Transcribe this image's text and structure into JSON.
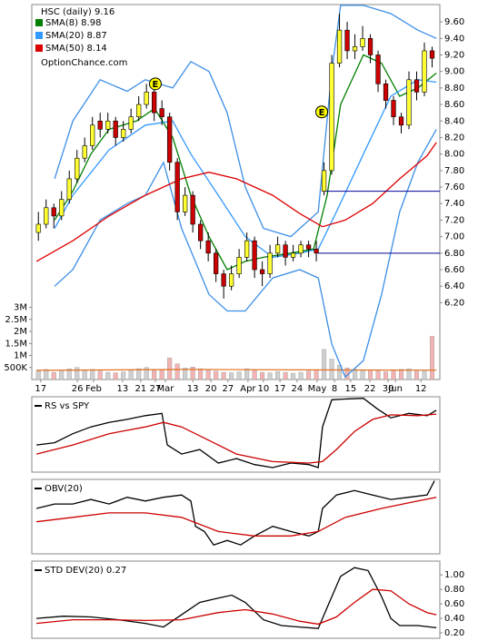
{
  "chart_data": [
    {
      "type": "candlestick",
      "title": "HSC (daily)",
      "last": 9.16,
      "source": "OptionChance.com",
      "xlim": [
        0,
        105
      ],
      "xticks": [
        {
          "value": 1.6,
          "label": "17"
        },
        {
          "value": 11.1,
          "label": "26"
        },
        {
          "value": 15.3,
          "label": "Feb"
        },
        {
          "value": 22.8,
          "label": "13"
        },
        {
          "value": 27.5,
          "label": "21"
        },
        {
          "value": 31.3,
          "label": "27"
        },
        {
          "value": 33.9,
          "label": "Mar"
        },
        {
          "value": 41.0,
          "label": "13"
        },
        {
          "value": 45.7,
          "label": "20"
        },
        {
          "value": 50.1,
          "label": "27"
        },
        {
          "value": 55.3,
          "label": "Apr"
        },
        {
          "value": 59.3,
          "label": "10"
        },
        {
          "value": 63.6,
          "label": "17"
        },
        {
          "value": 68.0,
          "label": "24"
        },
        {
          "value": 73.2,
          "label": "May"
        },
        {
          "value": 77.7,
          "label": "8"
        },
        {
          "value": 81.9,
          "label": "15"
        },
        {
          "value": 86.9,
          "label": "22"
        },
        {
          "value": 91.6,
          "label": "30"
        },
        {
          "value": 93.5,
          "label": "Jun"
        },
        {
          "value": 100.1,
          "label": "12"
        }
      ],
      "ylim": [
        5.27,
        9.81
      ],
      "yticks": [
        {
          "value": 6.2,
          "label": "6.20"
        },
        {
          "value": 6.4,
          "label": "6.40"
        },
        {
          "value": 6.6,
          "label": "6.60"
        },
        {
          "value": 6.8,
          "label": "6.80"
        },
        {
          "value": 7.0,
          "label": "7.00"
        },
        {
          "value": 7.2,
          "label": "7.20"
        },
        {
          "value": 7.4,
          "label": "7.40"
        },
        {
          "value": 7.6,
          "label": "7.60"
        },
        {
          "value": 7.8,
          "label": "7.80"
        },
        {
          "value": 8.0,
          "label": "8.00"
        },
        {
          "value": 8.2,
          "label": "8.20"
        },
        {
          "value": 8.4,
          "label": "8.40"
        },
        {
          "value": 8.6,
          "label": "8.60"
        },
        {
          "value": 8.8,
          "label": "8.80"
        },
        {
          "value": 9.0,
          "label": "9.00"
        },
        {
          "value": 9.2,
          "label": "9.20"
        },
        {
          "value": 9.4,
          "label": "9.40"
        },
        {
          "value": 9.6,
          "label": "9.60"
        }
      ],
      "up_color": "#ffff33",
      "down_color": "#cc0000",
      "x": [
        1,
        3,
        5,
        7,
        9,
        11,
        13,
        15,
        17,
        19,
        21,
        23,
        25,
        27,
        29,
        31,
        33,
        35,
        37,
        39,
        41,
        43,
        45,
        47,
        49,
        51,
        53,
        55,
        57,
        59,
        61,
        63,
        65,
        67,
        69,
        71,
        73,
        75,
        77,
        79,
        81,
        83,
        85,
        87,
        89,
        91,
        93,
        95,
        97,
        99,
        101,
        103
      ],
      "open": [
        7.05,
        7.15,
        7.35,
        7.25,
        7.45,
        7.7,
        7.95,
        8.1,
        8.4,
        8.3,
        8.4,
        8.2,
        8.3,
        8.45,
        8.6,
        8.75,
        8.55,
        8.45,
        7.9,
        7.3,
        7.5,
        7.15,
        6.95,
        6.8,
        6.55,
        6.4,
        6.55,
        6.75,
        6.95,
        6.6,
        6.55,
        6.8,
        6.9,
        6.75,
        6.8,
        6.9,
        6.85,
        7.55,
        7.8,
        9.1,
        9.5,
        9.25,
        9.3,
        9.4,
        9.2,
        8.85,
        8.65,
        8.45,
        8.35,
        8.9,
        8.75,
        9.25
      ],
      "high": [
        7.3,
        7.45,
        7.4,
        7.55,
        7.8,
        8.05,
        8.2,
        8.45,
        8.5,
        8.5,
        8.45,
        8.4,
        8.55,
        8.7,
        8.85,
        8.8,
        8.65,
        8.5,
        7.95,
        7.6,
        7.55,
        7.2,
        7.05,
        6.85,
        6.6,
        6.65,
        6.85,
        7.05,
        7.0,
        6.7,
        6.9,
        7.0,
        6.95,
        6.9,
        6.95,
        6.95,
        6.95,
        7.9,
        9.2,
        9.7,
        9.6,
        9.45,
        9.55,
        9.45,
        9.25,
        8.9,
        8.7,
        8.5,
        9.0,
        9.0,
        9.35,
        9.3
      ],
      "low": [
        6.95,
        7.1,
        7.1,
        7.2,
        7.4,
        7.65,
        7.9,
        8.05,
        8.2,
        8.25,
        8.1,
        8.15,
        8.25,
        8.4,
        8.55,
        8.4,
        8.35,
        7.8,
        7.2,
        7.25,
        7.05,
        6.85,
        6.7,
        6.45,
        6.25,
        6.35,
        6.5,
        6.7,
        6.5,
        6.4,
        6.5,
        6.75,
        6.65,
        6.7,
        6.75,
        6.75,
        6.7,
        7.5,
        7.75,
        9.05,
        9.15,
        9.15,
        9.25,
        9.1,
        8.75,
        8.55,
        8.35,
        8.25,
        8.3,
        8.65,
        8.7,
        9.05
      ],
      "close": [
        7.15,
        7.35,
        7.25,
        7.45,
        7.7,
        7.95,
        8.1,
        8.35,
        8.3,
        8.4,
        8.2,
        8.3,
        8.45,
        8.6,
        8.75,
        8.5,
        8.45,
        7.9,
        7.3,
        7.5,
        7.15,
        6.95,
        6.8,
        6.55,
        6.4,
        6.55,
        6.75,
        6.95,
        6.6,
        6.55,
        6.8,
        6.9,
        6.75,
        6.8,
        6.9,
        6.85,
        6.8,
        7.8,
        9.1,
        9.5,
        9.25,
        9.3,
        9.4,
        9.2,
        8.85,
        8.65,
        8.45,
        8.35,
        8.9,
        8.75,
        9.25,
        9.16
      ],
      "series": [
        {
          "name": "SMA(8)",
          "last": 8.98,
          "color": "#008000",
          "x": [
            5.2,
            9.9,
            14.6,
            19.3,
            26.4,
            31.1,
            35.8,
            40.5,
            45.2,
            49.9,
            54.6,
            59.3,
            66.4,
            72.3,
            75.8,
            79.3,
            85.2,
            89.9,
            94.6,
            99.3,
            104.1
          ],
          "values": [
            7.2,
            7.55,
            8.0,
            8.3,
            8.4,
            8.55,
            8.2,
            7.5,
            7.0,
            6.6,
            6.7,
            6.75,
            6.8,
            6.85,
            7.5,
            8.6,
            9.2,
            9.1,
            8.7,
            8.8,
            8.98
          ]
        },
        {
          "name": "SMA(20)",
          "last": 8.87,
          "color": "#3399ff",
          "x": [
            5.2,
            9.9,
            19.3,
            28.7,
            35.8,
            40.5,
            47.6,
            54.6,
            61.7,
            68.7,
            73.5,
            78.2,
            85.2,
            92.3,
            99.3,
            104.1
          ],
          "values": [
            7.1,
            7.5,
            8.05,
            8.35,
            8.4,
            8.0,
            7.5,
            7.0,
            6.75,
            6.8,
            6.85,
            7.3,
            8.0,
            8.7,
            8.9,
            8.87
          ]
        },
        {
          "name": "SMA(50)",
          "last": 8.14,
          "color": "#dd0000",
          "x": [
            0.5,
            9.9,
            19.3,
            28.7,
            38.1,
            45.2,
            52.3,
            61.7,
            68.7,
            74.6,
            80.5,
            87.6,
            94.6,
            101.7,
            104.1
          ],
          "values": [
            6.7,
            6.95,
            7.25,
            7.5,
            7.7,
            7.78,
            7.7,
            7.5,
            7.28,
            7.12,
            7.2,
            7.4,
            7.7,
            7.98,
            8.14
          ]
        }
      ],
      "bands": [
        {
          "color": "#3b8ee6",
          "x": [
            5.2,
            9.9,
            17.0,
            24.0,
            28.7,
            35.8,
            40.5,
            45.2,
            49.9,
            54.6,
            59.3,
            66.4,
            73.5,
            77.0,
            79.3,
            85.2,
            92.3,
            99.3,
            104.1
          ],
          "values": [
            7.7,
            8.4,
            8.9,
            8.76,
            8.9,
            8.8,
            9.12,
            9.0,
            8.5,
            7.6,
            7.1,
            7.0,
            7.3,
            9.0,
            9.8,
            9.8,
            9.7,
            9.5,
            9.4
          ]
        },
        {
          "color": "#3b8ee6",
          "x": [
            5.2,
            9.9,
            17.0,
            24.0,
            28.7,
            33.4,
            38.1,
            45.2,
            49.9,
            54.6,
            61.7,
            68.7,
            73.5,
            77.0,
            80.5,
            85.2,
            89.9,
            94.6,
            99.3,
            104.1
          ],
          "values": [
            6.4,
            6.6,
            7.2,
            7.4,
            7.5,
            7.9,
            7.1,
            6.3,
            6.1,
            6.1,
            6.5,
            6.6,
            6.5,
            5.7,
            5.3,
            5.5,
            6.3,
            7.3,
            7.9,
            8.3
          ]
        }
      ],
      "levels": [
        {
          "value": 7.55,
          "from": 74.6,
          "color": "#000099"
        },
        {
          "value": 6.8,
          "from": 73.5,
          "color": "#000099"
        }
      ],
      "events": [
        {
          "label": "E",
          "x": 31.3,
          "y": 8.85,
          "color": "#ffff00"
        },
        {
          "label": "E",
          "x": 74.4,
          "y": 8.51,
          "color": "#ffff00"
        }
      ],
      "volume": [
        350000,
        420000,
        300000,
        380000,
        450000,
        500000,
        380000,
        420000,
        350000,
        300000,
        280000,
        320000,
        400000,
        450000,
        500000,
        380000,
        420000,
        900000,
        650000,
        480000,
        520000,
        450000,
        380000,
        350000,
        300000,
        280000,
        320000,
        450000,
        380000,
        300000,
        280000,
        330000,
        300000,
        260000,
        300000,
        350000,
        400000,
        1250000,
        850000,
        600000,
        480000,
        420000,
        380000,
        400000,
        350000,
        320000,
        380000,
        420000,
        450000,
        350000,
        380000,
        1800000
      ],
      "volume_up_color": "#cfcfcf",
      "volume_down_color": "#f2b3b3",
      "vol_ylim": [
        0,
        15600000
      ],
      "vol_yticks": [
        {
          "value": 500000,
          "label": "500K"
        },
        {
          "value": 1000000,
          "label": "1M"
        },
        {
          "value": 1500000,
          "label": "1.5M"
        },
        {
          "value": 2000000,
          "label": "2M"
        },
        {
          "value": 2500000,
          "label": "2.5M"
        },
        {
          "value": 3000000,
          "label": "3M"
        }
      ],
      "volume_avg": {
        "color": "#e07020",
        "x": [
          0.5,
          40,
          70,
          104.1
        ],
        "values": [
          380000,
          420000,
          400000,
          390000
        ]
      }
    },
    {
      "type": "line",
      "title": "RS vs SPY",
      "xlim": [
        0,
        105
      ],
      "ylim": [
        0,
        100
      ],
      "series": [
        {
          "color": "#000000",
          "x": [
            0.5,
            5.2,
            9.9,
            14.6,
            19.3,
            24.0,
            28.7,
            33.0,
            34.4,
            38.1,
            42.8,
            47.6,
            52.3,
            57.0,
            61.7,
            66.4,
            71.1,
            73.5,
            74.6,
            77.0,
            80.5,
            85.2,
            88.8,
            92.3,
            97.0,
            101.7,
            104.1
          ],
          "values": [
            36,
            39,
            51,
            60,
            66,
            70,
            75,
            78,
            36,
            24,
            30,
            12,
            18,
            10,
            6,
            12,
            10,
            6,
            60,
            96,
            97,
            98,
            84,
            72,
            78,
            75,
            82
          ]
        },
        {
          "color": "#cc0000",
          "x": [
            0.5,
            9.9,
            19.3,
            28.7,
            33.4,
            38.1,
            45.2,
            52.3,
            61.7,
            71.1,
            74.6,
            78.2,
            82.9,
            87.6,
            92.3,
            99.3,
            104.1
          ],
          "values": [
            24,
            36,
            51,
            60,
            66,
            60,
            42,
            24,
            14,
            12,
            14,
            30,
            54,
            70,
            76,
            75,
            77
          ]
        }
      ]
    },
    {
      "type": "line",
      "title": "OBV(20)",
      "xlim": [
        0,
        105
      ],
      "ylim": [
        0,
        100
      ],
      "series": [
        {
          "color": "#000000",
          "x": [
            0.5,
            5.2,
            9.9,
            14.6,
            19.3,
            24.0,
            28.7,
            33.4,
            38.1,
            40.5,
            41.7,
            44.0,
            46.4,
            49.9,
            53.4,
            57.0,
            61.7,
            66.4,
            71.1,
            73.5,
            74.6,
            78.2,
            82.9,
            87.6,
            92.3,
            97.0,
            101.7,
            103.6
          ],
          "values": [
            61,
            67,
            67,
            73,
            67,
            76,
            71,
            76,
            79,
            71,
            37,
            30,
            12,
            18,
            12,
            24,
            37,
            30,
            24,
            30,
            61,
            79,
            85,
            79,
            73,
            76,
            79,
            98
          ]
        },
        {
          "color": "#cc0000",
          "x": [
            0.5,
            9.9,
            19.3,
            28.7,
            38.1,
            47.6,
            57.0,
            66.4,
            73.5,
            80.5,
            89.9,
            99.3,
            104.1
          ],
          "values": [
            43,
            49,
            55,
            55,
            49,
            30,
            24,
            24,
            30,
            49,
            61,
            71,
            76
          ]
        }
      ]
    },
    {
      "type": "line",
      "title": "STD DEV(20)",
      "last": 0.27,
      "xlim": [
        0,
        105
      ],
      "ylim": [
        0.125,
        1.19
      ],
      "yticks": [
        {
          "value": 0.2,
          "label": "0.20"
        },
        {
          "value": 0.4,
          "label": "0.40"
        },
        {
          "value": 0.6,
          "label": "0.60"
        },
        {
          "value": 0.8,
          "label": "0.80"
        },
        {
          "value": 1.0,
          "label": "1.00"
        }
      ],
      "series": [
        {
          "color": "#000000",
          "x": [
            0.5,
            7.5,
            14.6,
            21.7,
            28.7,
            33.4,
            38.1,
            42.8,
            47.6,
            51.1,
            54.6,
            59.3,
            64.0,
            68.7,
            73.5,
            75.8,
            79.3,
            82.9,
            86.4,
            89.9,
            92.3,
            94.6,
            99.3,
            104.1
          ],
          "values": [
            0.4,
            0.43,
            0.42,
            0.38,
            0.33,
            0.28,
            0.45,
            0.62,
            0.68,
            0.72,
            0.62,
            0.38,
            0.3,
            0.28,
            0.26,
            0.55,
            0.98,
            1.1,
            1.06,
            0.7,
            0.4,
            0.3,
            0.3,
            0.27
          ]
        },
        {
          "color": "#cc0000",
          "x": [
            0.5,
            9.9,
            19.3,
            28.7,
            38.1,
            47.6,
            54.6,
            61.7,
            68.7,
            73.5,
            78.2,
            82.9,
            87.6,
            92.3,
            97.0,
            101.7,
            104.1
          ],
          "values": [
            0.33,
            0.38,
            0.38,
            0.37,
            0.38,
            0.48,
            0.52,
            0.46,
            0.36,
            0.32,
            0.42,
            0.62,
            0.8,
            0.78,
            0.6,
            0.48,
            0.45
          ]
        }
      ]
    }
  ]
}
